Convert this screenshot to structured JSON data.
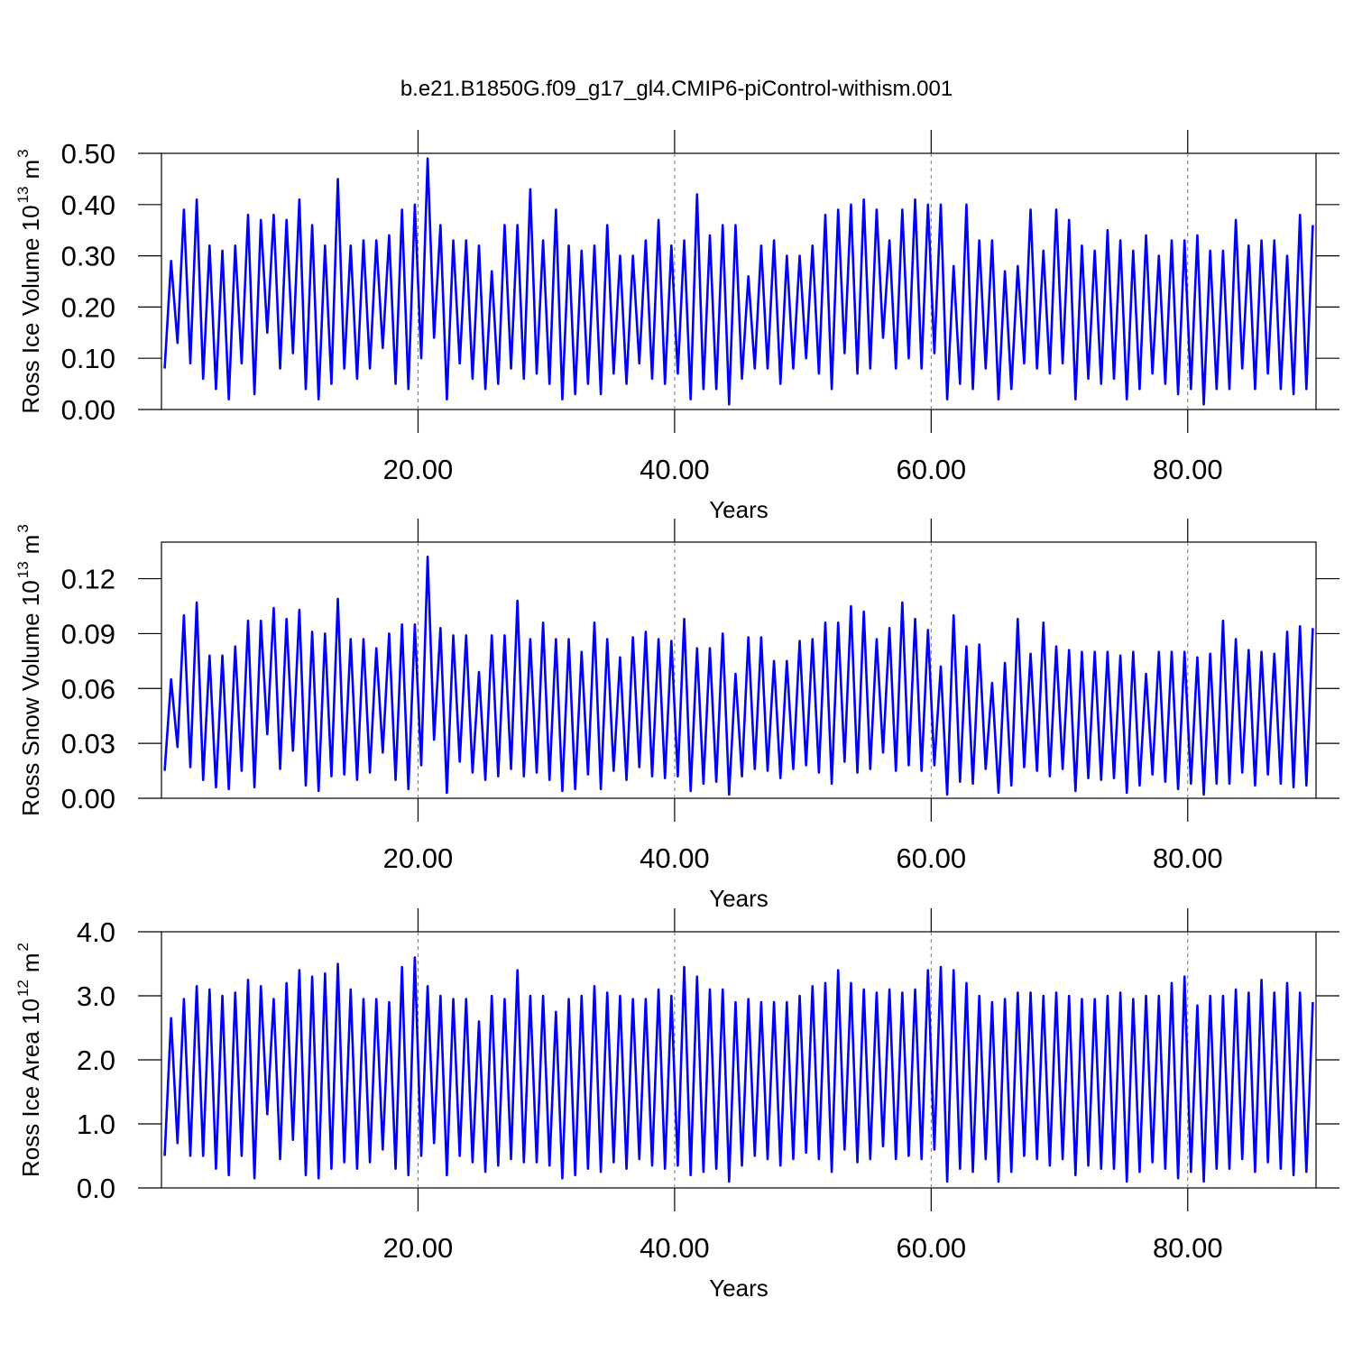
{
  "title": "b.e21.B1850G.f09_g17_gl4.CMIP6-piControl-withism.001",
  "chart_data": [
    {
      "type": "line",
      "ylabel": [
        "Ross Ice Volume 10",
        "13",
        "m",
        "3"
      ],
      "xlabel": "Years",
      "color": "#0000ff",
      "xlim": [
        0,
        90
      ],
      "xticks": [
        {
          "value": 20,
          "label": "20.00"
        },
        {
          "value": 40,
          "label": "40.00"
        },
        {
          "value": 60,
          "label": "60.00"
        },
        {
          "value": 80,
          "label": "80.00"
        }
      ],
      "xgrid": true,
      "ylim": [
        0,
        0.5
      ],
      "yticks": [
        {
          "value": 0,
          "label": "0.00"
        },
        {
          "value": 0.1,
          "label": "0.10"
        },
        {
          "value": 0.2,
          "label": "0.20"
        },
        {
          "value": 0.3,
          "label": "0.30"
        },
        {
          "value": 0.4,
          "label": "0.40"
        },
        {
          "value": 0.5,
          "label": "0.50"
        }
      ],
      "x": [
        0.25,
        0.75,
        1.25,
        1.75,
        2.25,
        2.75,
        3.25,
        3.75,
        4.25,
        4.75,
        5.25,
        5.75,
        6.25,
        6.75,
        7.25,
        7.75,
        8.25,
        8.75,
        9.25,
        9.75,
        10.25,
        10.75,
        11.25,
        11.75,
        12.25,
        12.75,
        13.25,
        13.75,
        14.25,
        14.75,
        15.25,
        15.75,
        16.25,
        16.75,
        17.25,
        17.75,
        18.25,
        18.75,
        19.25,
        19.75,
        20.25,
        20.75,
        21.25,
        21.75,
        22.25,
        22.75,
        23.25,
        23.75,
        24.25,
        24.75,
        25.25,
        25.75,
        26.25,
        26.75,
        27.25,
        27.75,
        28.25,
        28.75,
        29.25,
        29.75,
        30.25,
        30.75,
        31.25,
        31.75,
        32.25,
        32.75,
        33.25,
        33.75,
        34.25,
        34.75,
        35.25,
        35.75,
        36.25,
        36.75,
        37.25,
        37.75,
        38.25,
        38.75,
        39.25,
        39.75,
        40.25,
        40.75,
        41.25,
        41.75,
        42.25,
        42.75,
        43.25,
        43.75,
        44.25,
        44.75,
        45.25,
        45.75,
        46.25,
        46.75,
        47.25,
        47.75,
        48.25,
        48.75,
        49.25,
        49.75,
        50.25,
        50.75,
        51.25,
        51.75,
        52.25,
        52.75,
        53.25,
        53.75,
        54.25,
        54.75,
        55.25,
        55.75,
        56.25,
        56.75,
        57.25,
        57.75,
        58.25,
        58.75,
        59.25,
        59.75,
        60.25,
        60.75,
        61.25,
        61.75,
        62.25,
        62.75,
        63.25,
        63.75,
        64.25,
        64.75,
        65.25,
        65.75,
        66.25,
        66.75,
        67.25,
        67.75,
        68.25,
        68.75,
        69.25,
        69.75,
        70.25,
        70.75,
        71.25,
        71.75,
        72.25,
        72.75,
        73.25,
        73.75,
        74.25,
        74.75,
        75.25,
        75.75,
        76.25,
        76.75,
        77.25,
        77.75,
        78.25,
        78.75,
        79.25,
        79.75,
        80.25,
        80.75,
        81.25,
        81.75,
        82.25,
        82.75,
        83.25,
        83.75,
        84.25,
        84.75,
        85.25,
        85.75,
        86.25,
        86.75,
        87.25,
        87.75,
        88.25,
        88.75,
        89.25,
        89.75
      ],
      "values": [
        0.08,
        0.29,
        0.13,
        0.39,
        0.09,
        0.41,
        0.06,
        0.32,
        0.04,
        0.31,
        0.02,
        0.32,
        0.09,
        0.38,
        0.03,
        0.37,
        0.15,
        0.38,
        0.08,
        0.37,
        0.11,
        0.41,
        0.04,
        0.36,
        0.02,
        0.32,
        0.05,
        0.45,
        0.08,
        0.32,
        0.06,
        0.33,
        0.08,
        0.33,
        0.12,
        0.34,
        0.05,
        0.39,
        0.04,
        0.4,
        0.1,
        0.49,
        0.14,
        0.36,
        0.02,
        0.33,
        0.09,
        0.33,
        0.06,
        0.32,
        0.04,
        0.27,
        0.05,
        0.36,
        0.08,
        0.36,
        0.06,
        0.43,
        0.07,
        0.33,
        0.05,
        0.39,
        0.02,
        0.32,
        0.03,
        0.31,
        0.05,
        0.32,
        0.03,
        0.36,
        0.07,
        0.3,
        0.05,
        0.3,
        0.09,
        0.33,
        0.06,
        0.37,
        0.05,
        0.32,
        0.07,
        0.33,
        0.02,
        0.42,
        0.04,
        0.34,
        0.04,
        0.36,
        0.01,
        0.36,
        0.06,
        0.26,
        0.08,
        0.32,
        0.08,
        0.33,
        0.05,
        0.3,
        0.08,
        0.3,
        0.1,
        0.32,
        0.07,
        0.38,
        0.04,
        0.39,
        0.11,
        0.4,
        0.07,
        0.41,
        0.08,
        0.39,
        0.14,
        0.33,
        0.08,
        0.39,
        0.1,
        0.41,
        0.08,
        0.4,
        0.11,
        0.4,
        0.02,
        0.28,
        0.05,
        0.4,
        0.04,
        0.33,
        0.08,
        0.33,
        0.02,
        0.27,
        0.04,
        0.28,
        0.09,
        0.39,
        0.08,
        0.31,
        0.07,
        0.39,
        0.09,
        0.37,
        0.02,
        0.32,
        0.06,
        0.31,
        0.05,
        0.35,
        0.06,
        0.33,
        0.02,
        0.31,
        0.04,
        0.34,
        0.07,
        0.3,
        0.05,
        0.33,
        0.03,
        0.33,
        0.04,
        0.34,
        0.01,
        0.31,
        0.04,
        0.31,
        0.04,
        0.37,
        0.08,
        0.32,
        0.04,
        0.33,
        0.07,
        0.33,
        0.04,
        0.3,
        0.03,
        0.38,
        0.04,
        0.36
      ]
    },
    {
      "type": "line",
      "ylabel": [
        "Ross Snow Volume 10",
        "13",
        "m",
        "3"
      ],
      "xlabel": "Years",
      "color": "#0000ff",
      "xlim": [
        0,
        90
      ],
      "xticks": [
        {
          "value": 20,
          "label": "20.00"
        },
        {
          "value": 40,
          "label": "40.00"
        },
        {
          "value": 60,
          "label": "60.00"
        },
        {
          "value": 80,
          "label": "80.00"
        }
      ],
      "xgrid": true,
      "ylim": [
        0,
        0.14
      ],
      "yticks": [
        {
          "value": 0,
          "label": "0.00"
        },
        {
          "value": 0.03,
          "label": "0.03"
        },
        {
          "value": 0.06,
          "label": "0.06"
        },
        {
          "value": 0.09,
          "label": "0.09"
        },
        {
          "value": 0.12,
          "label": "0.12"
        }
      ],
      "x": [
        0.25,
        0.75,
        1.25,
        1.75,
        2.25,
        2.75,
        3.25,
        3.75,
        4.25,
        4.75,
        5.25,
        5.75,
        6.25,
        6.75,
        7.25,
        7.75,
        8.25,
        8.75,
        9.25,
        9.75,
        10.25,
        10.75,
        11.25,
        11.75,
        12.25,
        12.75,
        13.25,
        13.75,
        14.25,
        14.75,
        15.25,
        15.75,
        16.25,
        16.75,
        17.25,
        17.75,
        18.25,
        18.75,
        19.25,
        19.75,
        20.25,
        20.75,
        21.25,
        21.75,
        22.25,
        22.75,
        23.25,
        23.75,
        24.25,
        24.75,
        25.25,
        25.75,
        26.25,
        26.75,
        27.25,
        27.75,
        28.25,
        28.75,
        29.25,
        29.75,
        30.25,
        30.75,
        31.25,
        31.75,
        32.25,
        32.75,
        33.25,
        33.75,
        34.25,
        34.75,
        35.25,
        35.75,
        36.25,
        36.75,
        37.25,
        37.75,
        38.25,
        38.75,
        39.25,
        39.75,
        40.25,
        40.75,
        41.25,
        41.75,
        42.25,
        42.75,
        43.25,
        43.75,
        44.25,
        44.75,
        45.25,
        45.75,
        46.25,
        46.75,
        47.25,
        47.75,
        48.25,
        48.75,
        49.25,
        49.75,
        50.25,
        50.75,
        51.25,
        51.75,
        52.25,
        52.75,
        53.25,
        53.75,
        54.25,
        54.75,
        55.25,
        55.75,
        56.25,
        56.75,
        57.25,
        57.75,
        58.25,
        58.75,
        59.25,
        59.75,
        60.25,
        60.75,
        61.25,
        61.75,
        62.25,
        62.75,
        63.25,
        63.75,
        64.25,
        64.75,
        65.25,
        65.75,
        66.25,
        66.75,
        67.25,
        67.75,
        68.25,
        68.75,
        69.25,
        69.75,
        70.25,
        70.75,
        71.25,
        71.75,
        72.25,
        72.75,
        73.25,
        73.75,
        74.25,
        74.75,
        75.25,
        75.75,
        76.25,
        76.75,
        77.25,
        77.75,
        78.25,
        78.75,
        79.25,
        79.75,
        80.25,
        80.75,
        81.25,
        81.75,
        82.25,
        82.75,
        83.25,
        83.75,
        84.25,
        84.75,
        85.25,
        85.75,
        86.25,
        86.75,
        87.25,
        87.75,
        88.25,
        88.75,
        89.25,
        89.75
      ],
      "values": [
        0.015,
        0.065,
        0.028,
        0.1,
        0.017,
        0.107,
        0.01,
        0.078,
        0.006,
        0.078,
        0.005,
        0.083,
        0.015,
        0.097,
        0.006,
        0.097,
        0.035,
        0.104,
        0.016,
        0.098,
        0.026,
        0.103,
        0.007,
        0.091,
        0.004,
        0.09,
        0.012,
        0.109,
        0.013,
        0.087,
        0.01,
        0.087,
        0.014,
        0.082,
        0.025,
        0.09,
        0.01,
        0.095,
        0.005,
        0.095,
        0.018,
        0.132,
        0.032,
        0.093,
        0.003,
        0.089,
        0.02,
        0.089,
        0.014,
        0.069,
        0.01,
        0.089,
        0.012,
        0.089,
        0.016,
        0.108,
        0.012,
        0.087,
        0.014,
        0.096,
        0.01,
        0.087,
        0.004,
        0.087,
        0.005,
        0.08,
        0.013,
        0.096,
        0.005,
        0.087,
        0.015,
        0.077,
        0.01,
        0.088,
        0.017,
        0.091,
        0.012,
        0.087,
        0.011,
        0.086,
        0.012,
        0.098,
        0.004,
        0.082,
        0.008,
        0.082,
        0.009,
        0.09,
        0.002,
        0.068,
        0.012,
        0.088,
        0.016,
        0.088,
        0.015,
        0.075,
        0.011,
        0.075,
        0.016,
        0.086,
        0.018,
        0.087,
        0.014,
        0.096,
        0.008,
        0.096,
        0.02,
        0.105,
        0.014,
        0.102,
        0.016,
        0.087,
        0.025,
        0.093,
        0.015,
        0.107,
        0.018,
        0.098,
        0.015,
        0.092,
        0.018,
        0.072,
        0.002,
        0.1,
        0.009,
        0.083,
        0.008,
        0.084,
        0.016,
        0.063,
        0.003,
        0.074,
        0.007,
        0.098,
        0.017,
        0.079,
        0.015,
        0.096,
        0.012,
        0.083,
        0.016,
        0.081,
        0.004,
        0.08,
        0.011,
        0.08,
        0.01,
        0.08,
        0.011,
        0.078,
        0.003,
        0.08,
        0.007,
        0.068,
        0.013,
        0.08,
        0.009,
        0.08,
        0.005,
        0.08,
        0.008,
        0.077,
        0.002,
        0.079,
        0.008,
        0.097,
        0.008,
        0.087,
        0.014,
        0.081,
        0.007,
        0.08,
        0.013,
        0.079,
        0.008,
        0.091,
        0.006,
        0.094,
        0.007,
        0.093
      ]
    },
    {
      "type": "line",
      "ylabel": [
        "Ross Ice Area 10",
        "12",
        "m",
        "2"
      ],
      "xlabel": "Years",
      "color": "#0000ff",
      "xlim": [
        0,
        90
      ],
      "xticks": [
        {
          "value": 20,
          "label": "20.00"
        },
        {
          "value": 40,
          "label": "40.00"
        },
        {
          "value": 60,
          "label": "60.00"
        },
        {
          "value": 80,
          "label": "80.00"
        }
      ],
      "xgrid": true,
      "ylim": [
        0,
        4
      ],
      "yticks": [
        {
          "value": 0,
          "label": "0.0"
        },
        {
          "value": 1,
          "label": "1.0"
        },
        {
          "value": 2,
          "label": "2.0"
        },
        {
          "value": 3,
          "label": "3.0"
        },
        {
          "value": 4,
          "label": "4.0"
        }
      ],
      "x": [
        0.25,
        0.75,
        1.25,
        1.75,
        2.25,
        2.75,
        3.25,
        3.75,
        4.25,
        4.75,
        5.25,
        5.75,
        6.25,
        6.75,
        7.25,
        7.75,
        8.25,
        8.75,
        9.25,
        9.75,
        10.25,
        10.75,
        11.25,
        11.75,
        12.25,
        12.75,
        13.25,
        13.75,
        14.25,
        14.75,
        15.25,
        15.75,
        16.25,
        16.75,
        17.25,
        17.75,
        18.25,
        18.75,
        19.25,
        19.75,
        20.25,
        20.75,
        21.25,
        21.75,
        22.25,
        22.75,
        23.25,
        23.75,
        24.25,
        24.75,
        25.25,
        25.75,
        26.25,
        26.75,
        27.25,
        27.75,
        28.25,
        28.75,
        29.25,
        29.75,
        30.25,
        30.75,
        31.25,
        31.75,
        32.25,
        32.75,
        33.25,
        33.75,
        34.25,
        34.75,
        35.25,
        35.75,
        36.25,
        36.75,
        37.25,
        37.75,
        38.25,
        38.75,
        39.25,
        39.75,
        40.25,
        40.75,
        41.25,
        41.75,
        42.25,
        42.75,
        43.25,
        43.75,
        44.25,
        44.75,
        45.25,
        45.75,
        46.25,
        46.75,
        47.25,
        47.75,
        48.25,
        48.75,
        49.25,
        49.75,
        50.25,
        50.75,
        51.25,
        51.75,
        52.25,
        52.75,
        53.25,
        53.75,
        54.25,
        54.75,
        55.25,
        55.75,
        56.25,
        56.75,
        57.25,
        57.75,
        58.25,
        58.75,
        59.25,
        59.75,
        60.25,
        60.75,
        61.25,
        61.75,
        62.25,
        62.75,
        63.25,
        63.75,
        64.25,
        64.75,
        65.25,
        65.75,
        66.25,
        66.75,
        67.25,
        67.75,
        68.25,
        68.75,
        69.25,
        69.75,
        70.25,
        70.75,
        71.25,
        71.75,
        72.25,
        72.75,
        73.25,
        73.75,
        74.25,
        74.75,
        75.25,
        75.75,
        76.25,
        76.75,
        77.25,
        77.75,
        78.25,
        78.75,
        79.25,
        79.75,
        80.25,
        80.75,
        81.25,
        81.75,
        82.25,
        82.75,
        83.25,
        83.75,
        84.25,
        84.75,
        85.25,
        85.75,
        86.25,
        86.75,
        87.25,
        87.75,
        88.25,
        88.75,
        89.25,
        89.75
      ],
      "values": [
        0.5,
        2.65,
        0.7,
        2.95,
        0.5,
        3.15,
        0.5,
        3.1,
        0.3,
        3.0,
        0.2,
        3.05,
        0.5,
        3.25,
        0.15,
        3.15,
        1.15,
        2.95,
        0.45,
        3.2,
        0.75,
        3.4,
        0.2,
        3.3,
        0.15,
        3.35,
        0.3,
        3.5,
        0.4,
        3.1,
        0.3,
        2.95,
        0.4,
        2.95,
        0.6,
        2.9,
        0.3,
        3.45,
        0.2,
        3.6,
        0.5,
        3.15,
        0.7,
        3.0,
        0.2,
        2.95,
        0.5,
        2.95,
        0.4,
        2.6,
        0.25,
        3.0,
        0.35,
        2.95,
        0.45,
        3.4,
        0.4,
        3.0,
        0.4,
        3.0,
        0.35,
        2.75,
        0.15,
        2.95,
        0.2,
        3.0,
        0.3,
        3.15,
        0.25,
        3.05,
        0.4,
        3.0,
        0.3,
        2.95,
        0.45,
        2.95,
        0.35,
        3.1,
        0.3,
        3.0,
        0.35,
        3.45,
        0.2,
        3.3,
        0.25,
        3.1,
        0.3,
        3.1,
        0.1,
        2.9,
        0.35,
        2.95,
        0.5,
        2.9,
        0.45,
        2.9,
        0.35,
        2.9,
        0.45,
        3.0,
        0.55,
        3.15,
        0.45,
        3.2,
        0.25,
        3.4,
        0.6,
        3.2,
        0.4,
        3.1,
        0.45,
        3.05,
        0.65,
        3.1,
        0.45,
        3.05,
        0.5,
        3.1,
        0.45,
        3.4,
        0.6,
        3.45,
        0.1,
        3.4,
        0.3,
        3.2,
        0.25,
        3.0,
        0.45,
        2.9,
        0.1,
        2.95,
        0.25,
        3.05,
        0.5,
        3.05,
        0.45,
        3.0,
        0.35,
        3.05,
        0.45,
        3.0,
        0.2,
        2.95,
        0.35,
        2.95,
        0.3,
        3.0,
        0.3,
        3.05,
        0.1,
        2.95,
        0.25,
        3.0,
        0.4,
        3.0,
        0.3,
        3.2,
        0.15,
        3.3,
        0.25,
        2.85,
        0.1,
        3.0,
        0.3,
        3.0,
        0.3,
        3.1,
        0.45,
        3.05,
        0.25,
        3.25,
        0.4,
        3.05,
        0.3,
        3.2,
        0.2,
        3.05,
        0.25,
        2.9
      ]
    }
  ]
}
